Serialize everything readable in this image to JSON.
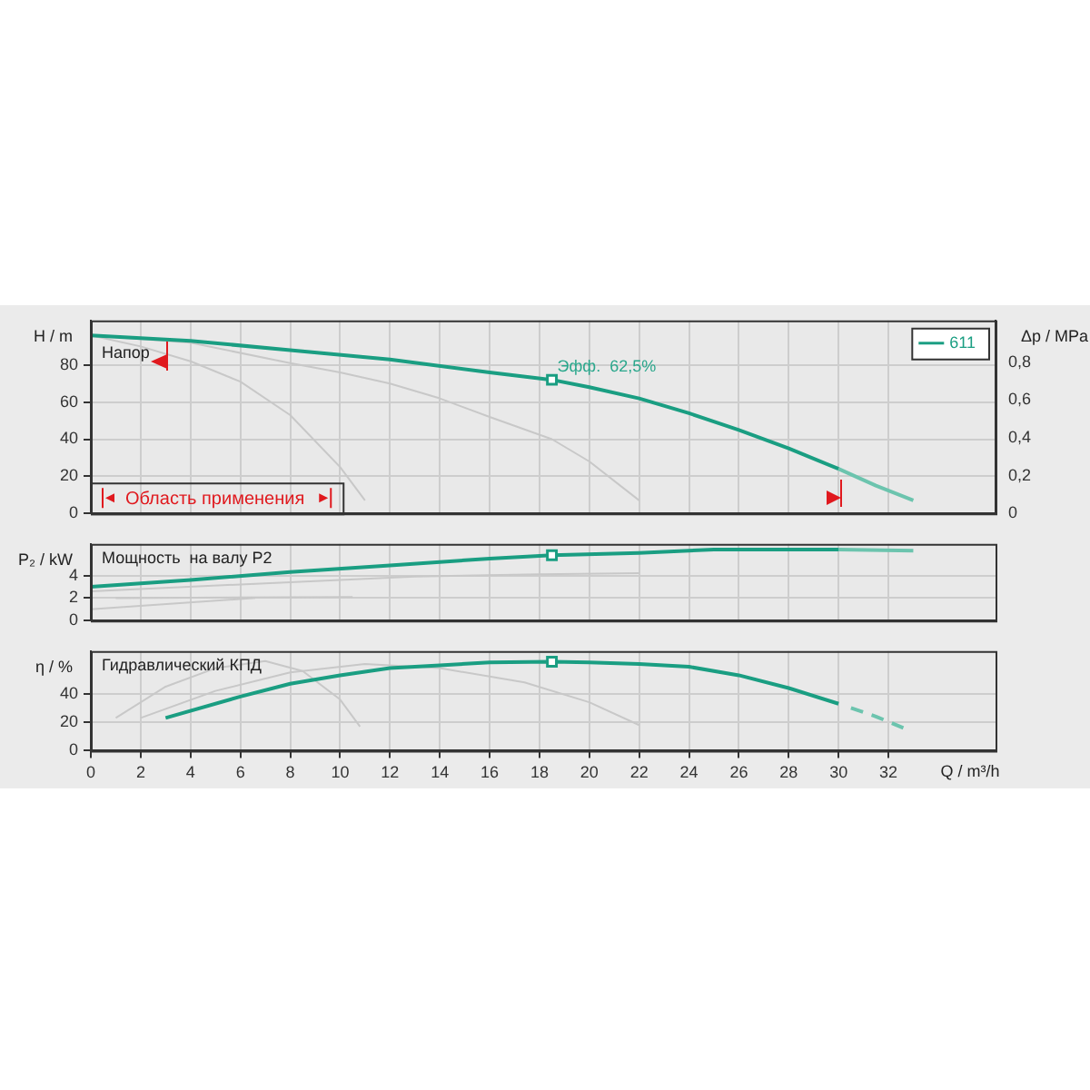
{
  "chart_data": [
    {
      "type": "line",
      "xlim": [
        0,
        36.3
      ],
      "xticks": [
        0,
        2,
        4,
        6,
        8,
        10,
        12,
        14,
        16,
        18,
        20,
        22,
        24,
        26,
        28,
        30,
        32
      ],
      "ylim": [
        0,
        104
      ],
      "yticks": [
        0,
        20,
        40,
        60,
        80
      ],
      "y2lim": [
        0,
        1.02
      ],
      "y2ticks": [
        0,
        {
          "value": 0.2,
          "label": "0,2"
        },
        {
          "value": 0.4,
          "label": "0,4"
        },
        {
          "value": 0.6,
          "label": "0,6"
        },
        {
          "value": 0.8,
          "label": "0,8"
        }
      ],
      "ylabel": "H / m",
      "y2label": "Δp / MPa",
      "tick_labels": "y",
      "grid": true,
      "legend": "top right",
      "marker": "none",
      "line_style": "solid",
      "annotations": [
        "Напор",
        "Область применения",
        {
          "text": "Эфф.  62,5%",
          "x": 18.5,
          "y": 72
        }
      ],
      "series": [
        {
          "name": "611",
          "color": "#1a9e82",
          "x": [
            0,
            4,
            8,
            12,
            16,
            18.5,
            20,
            22,
            24,
            26,
            28,
            30
          ],
          "values": [
            96,
            93,
            88,
            83,
            76,
            72,
            68,
            62,
            54,
            45,
            35,
            24
          ]
        },
        {
          "color": "#6cc4ae",
          "x": [
            30,
            31.5,
            33
          ],
          "values": [
            24,
            15,
            7
          ]
        },
        {
          "color": "#c8c8c8",
          "x": [
            0,
            2,
            4,
            6,
            8,
            10,
            11
          ],
          "values": [
            96,
            90,
            82,
            71,
            53,
            25,
            7
          ]
        },
        {
          "color": "#c8c8c8",
          "x": [
            0,
            4,
            8,
            10,
            12,
            14,
            16,
            18.5,
            20,
            22
          ],
          "values": [
            96,
            92,
            81,
            76,
            70,
            62,
            52,
            40,
            28,
            7
          ]
        },
        {
          "type": "scatter",
          "marker": "square",
          "color": "#1a9e82",
          "x": [
            18.5
          ],
          "values": [
            72
          ]
        }
      ]
    },
    {
      "type": "line",
      "xlim": [
        0,
        36.3
      ],
      "xticks": [
        0,
        2,
        4,
        6,
        8,
        10,
        12,
        14,
        16,
        18,
        20,
        22,
        24,
        26,
        28,
        30,
        32
      ],
      "ylim": [
        0,
        6.8
      ],
      "yticks": [
        0,
        2,
        4
      ],
      "ylabel": "P₂ / kW",
      "tick_labels": "y",
      "grid": true,
      "marker": "none",
      "line_style": "solid",
      "annotations": [
        "Мощность  на валу P2"
      ],
      "series": [
        {
          "color": "#1a9e82",
          "x": [
            0,
            4,
            8,
            12,
            16,
            18.5,
            22,
            25,
            30
          ],
          "values": [
            3.0,
            3.6,
            4.3,
            4.9,
            5.5,
            5.8,
            6.0,
            6.3,
            6.3
          ]
        },
        {
          "color": "#6cc4ae",
          "x": [
            30,
            33
          ],
          "values": [
            6.3,
            6.2
          ]
        },
        {
          "color": "#c8c8c8",
          "x": [
            0,
            6.6
          ],
          "values": [
            1.0,
            2.0
          ]
        },
        {
          "color": "#c8c8c8",
          "x": [
            1,
            10.5
          ],
          "values": [
            2.0,
            2.1
          ]
        },
        {
          "color": "#c8c8c8",
          "x": [
            0,
            6,
            13,
            18,
            22
          ],
          "values": [
            2.6,
            3.2,
            3.9,
            4.1,
            4.2
          ]
        },
        {
          "type": "scatter",
          "marker": "square",
          "color": "#1a9e82",
          "x": [
            18.5
          ],
          "values": [
            5.8
          ]
        }
      ]
    },
    {
      "type": "line",
      "xlim": [
        0,
        36.3
      ],
      "xticks": [
        0,
        2,
        4,
        6,
        8,
        10,
        12,
        14,
        16,
        18,
        20,
        22,
        24,
        26,
        28,
        30,
        32
      ],
      "ylim": [
        0,
        70
      ],
      "yticks": [
        0,
        20,
        40
      ],
      "ylabel": "η / %",
      "xlabel": "Q / m³/h",
      "grid": true,
      "marker": "none",
      "line_style": "solid",
      "annotations": [
        "Гидравлический КПД"
      ],
      "series": [
        {
          "color": "#1a9e82",
          "x": [
            3,
            6,
            8,
            10,
            12,
            14,
            16,
            18.5,
            20,
            22,
            24,
            26,
            28,
            30
          ],
          "values": [
            23,
            38,
            47,
            53,
            58,
            60,
            62,
            62.5,
            62,
            61,
            59,
            53,
            44,
            33
          ]
        },
        {
          "color": "#6cc4ae",
          "line_style": "dashed",
          "x": [
            30.5,
            31.5,
            32.6
          ],
          "values": [
            30,
            24,
            16
          ]
        },
        {
          "color": "#c8c8c8",
          "x": [
            1,
            3,
            5,
            7,
            8.5,
            10,
            10.8
          ],
          "values": [
            23,
            45,
            58,
            63,
            56,
            36,
            17
          ]
        },
        {
          "color": "#c8c8c8",
          "x": [
            2,
            5,
            8,
            11,
            14,
            17.4,
            20,
            22
          ],
          "values": [
            23,
            42,
            55,
            61,
            58,
            48,
            34,
            18
          ]
        },
        {
          "type": "scatter",
          "marker": "square",
          "color": "#1a9e82",
          "x": [
            18.5
          ],
          "values": [
            62.5
          ]
        }
      ]
    }
  ]
}
